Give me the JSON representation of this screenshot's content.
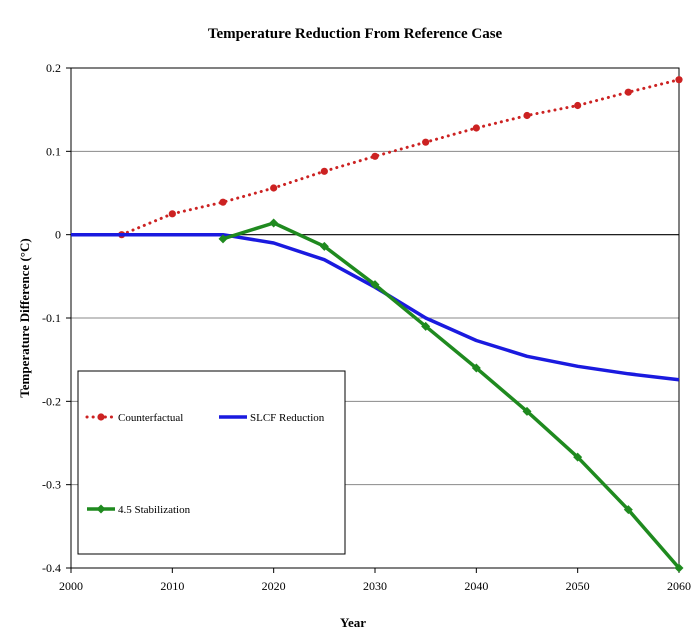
{
  "chart_data": {
    "type": "line",
    "title": "Temperature Reduction From Reference Case",
    "xlabel": "Year",
    "ylabel": "Temperature Difference (°C)",
    "xlim": [
      2000,
      2060
    ],
    "ylim": [
      -0.4,
      0.2
    ],
    "x_ticks": [
      2000,
      2010,
      2020,
      2030,
      2040,
      2050,
      2060
    ],
    "y_ticks": [
      0.2,
      0.1,
      0,
      -0.1,
      -0.2,
      -0.3,
      -0.4
    ],
    "grid": "horizontal",
    "legend_position": "bottom-left",
    "series": [
      {
        "name": "Counterfactual",
        "color": "#cc2222",
        "style": "dotted-circle",
        "points": [
          [
            2005,
            0.0
          ],
          [
            2010,
            0.025
          ],
          [
            2015,
            0.039
          ],
          [
            2020,
            0.056
          ],
          [
            2025,
            0.076
          ],
          [
            2030,
            0.094
          ],
          [
            2035,
            0.111
          ],
          [
            2040,
            0.128
          ],
          [
            2045,
            0.143
          ],
          [
            2050,
            0.155
          ],
          [
            2055,
            0.171
          ],
          [
            2060,
            0.186
          ]
        ]
      },
      {
        "name": "SLCF Reduction",
        "color": "#1a1adf",
        "style": "solid",
        "points": [
          [
            2000,
            0.0
          ],
          [
            2015,
            0.0
          ],
          [
            2020,
            -0.01
          ],
          [
            2025,
            -0.03
          ],
          [
            2030,
            -0.063
          ],
          [
            2035,
            -0.1
          ],
          [
            2040,
            -0.127
          ],
          [
            2045,
            -0.146
          ],
          [
            2050,
            -0.158
          ],
          [
            2055,
            -0.167
          ],
          [
            2060,
            -0.174
          ]
        ]
      },
      {
        "name": "4.5 Stabilization",
        "color": "#1f8a1f",
        "style": "solid-diamond",
        "points": [
          [
            2015,
            -0.005
          ],
          [
            2020,
            0.014
          ],
          [
            2025,
            -0.014
          ],
          [
            2030,
            -0.06
          ],
          [
            2035,
            -0.11
          ],
          [
            2040,
            -0.16
          ],
          [
            2045,
            -0.212
          ],
          [
            2050,
            -0.267
          ],
          [
            2055,
            -0.33
          ],
          [
            2060,
            -0.4
          ]
        ]
      }
    ]
  }
}
